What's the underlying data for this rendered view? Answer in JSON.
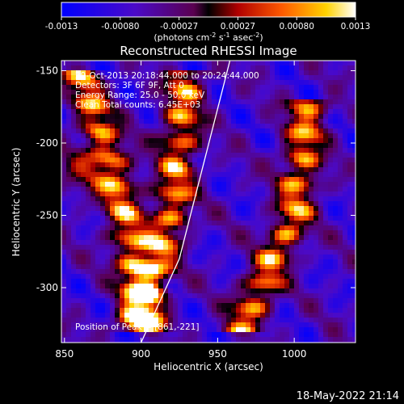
{
  "chart_data": {
    "type": "heatmap",
    "colorbar": {
      "ticks": [
        "-0.0013",
        "-0.00080",
        "-0.00027",
        "0.00027",
        "0.00080",
        "0.0013"
      ],
      "unit_main": "(photons cm",
      "unit_exp1": "-2",
      "unit_mid": " s",
      "unit_exp2": "-1",
      "unit_mid2": " asec",
      "unit_exp3": "-2",
      "unit_end": ")",
      "range": [
        -0.0013,
        0.0013
      ]
    },
    "title": "Reconstructed RHESSI Image",
    "xlabel": "Heliocentric X (arcsec)",
    "ylabel": "Heliocentric Y (arcsec)",
    "xticks": [
      "850",
      "900",
      "950",
      "1000"
    ],
    "yticks": [
      "-150",
      "-200",
      "-250",
      "-300"
    ],
    "xlim": [
      848,
      1040
    ],
    "ylim": [
      -338,
      -143
    ],
    "annotations": {
      "time": "29-Oct-2013 20:18:44.000 to 20:24:44.000",
      "detectors": "Detectors: 3F 6F 9F, Att 0",
      "energy": "Energy Range: 25.0 - 50.0 keV",
      "clean": "Clean    Total counts: 6.45E+03",
      "peak": "Position of Peak = [861,-221]"
    },
    "limb_line": [
      [
        900,
        -338
      ],
      [
        925,
        -280
      ],
      [
        958,
        -143
      ]
    ],
    "ridges": [
      {
        "name": "left",
        "points": [
          [
            860,
            -150
          ],
          [
            885,
            -230
          ],
          [
            905,
            -330
          ]
        ]
      },
      {
        "name": "center",
        "points": [
          [
            930,
            -150
          ],
          [
            920,
            -250
          ],
          [
            895,
            -330
          ]
        ]
      },
      {
        "name": "right",
        "points": [
          [
            1010,
            -170
          ],
          [
            1000,
            -250
          ],
          [
            965,
            -330
          ]
        ]
      }
    ],
    "peak": [
      861,
      -221
    ]
  },
  "footer": {
    "timestamp": "18-May-2022 21:14"
  },
  "colors": {
    "background": "#000000",
    "text": "#ffffff"
  }
}
